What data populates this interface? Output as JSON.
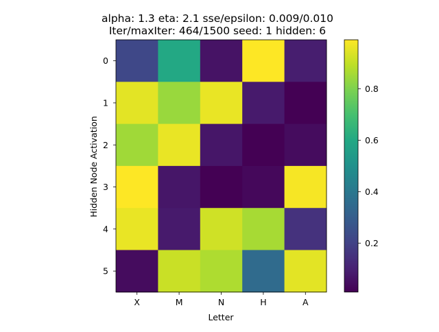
{
  "chart_data": {
    "type": "heatmap",
    "title_lines": [
      "alpha: 1.3  eta: 2.1  sse/epsilon: 0.009/0.010",
      "Iter/maxIter: 464/1500  seed: 1  hidden: 6"
    ],
    "xlabel": "Letter",
    "ylabel": "Hidden Node Activation",
    "x_categories": [
      "X",
      "M",
      "N",
      "H",
      "A"
    ],
    "y_categories": [
      "0",
      "1",
      "2",
      "3",
      "4",
      "5"
    ],
    "values": [
      [
        0.22,
        0.6,
        0.06,
        0.99,
        0.09
      ],
      [
        0.95,
        0.84,
        0.96,
        0.08,
        0.01
      ],
      [
        0.85,
        0.96,
        0.07,
        0.01,
        0.04
      ],
      [
        0.99,
        0.07,
        0.01,
        0.03,
        0.98
      ],
      [
        0.96,
        0.08,
        0.92,
        0.86,
        0.15
      ],
      [
        0.04,
        0.91,
        0.87,
        0.35,
        0.95
      ]
    ],
    "colormap": "viridis",
    "vmin": 0.01,
    "vmax": 0.99,
    "colorbar_ticks": [
      0.2,
      0.4,
      0.6,
      0.8
    ]
  }
}
